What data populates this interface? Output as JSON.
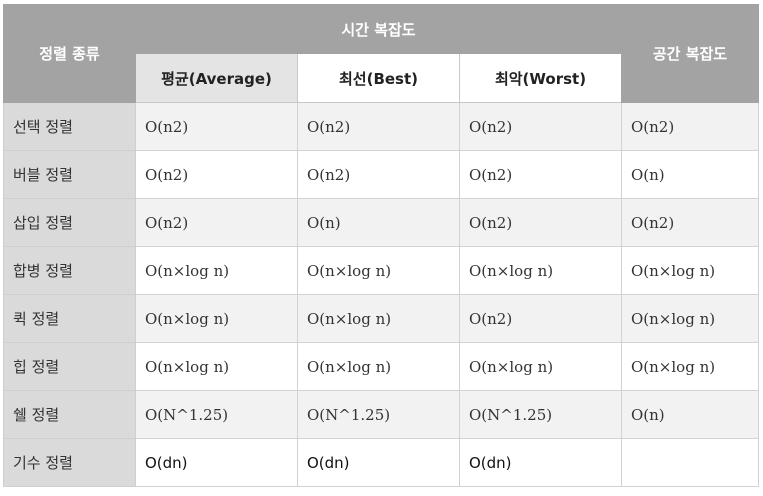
{
  "header": {
    "sort_type": "정렬 종류",
    "time_complexity": "시간 복잡도",
    "space_complexity": "공간 복잡도",
    "average": "평균(Average)",
    "best": "최선(Best)",
    "worst": "최악(Worst)"
  },
  "rows": [
    {
      "name": "선택 정렬",
      "average": "O(n2)",
      "best": "O(n2)",
      "worst": "O(n2)",
      "space": "O(n2)"
    },
    {
      "name": "버블 정렬",
      "average": "O(n2)",
      "best": "O(n2)",
      "worst": "O(n2)",
      "space": "O(n)"
    },
    {
      "name": "삽입 정렬",
      "average": "O(n2)",
      "best": "O(n)",
      "worst": "O(n2)",
      "space": "O(n2)"
    },
    {
      "name": "합병 정렬",
      "average": "O(n×log n)",
      "best": "O(n×log n)",
      "worst": "O(n×log n)",
      "space": "O(n×log n)"
    },
    {
      "name": "퀵 정렬",
      "average": "O(n×log n)",
      "best": "O(n×log n)",
      "worst": "O(n2)",
      "space": "O(n×log n)"
    },
    {
      "name": "힙 정렬",
      "average": "O(n×log n)",
      "best": "O(n×log n)",
      "worst": "O(n×log n)",
      "space": "O(n×log n)"
    },
    {
      "name": "쉘 정렬",
      "average": "O(N^1.25)",
      "best": "O(N^1.25)",
      "worst": "O(N^1.25)",
      "space": "O(n)"
    },
    {
      "name": "기수 정렬",
      "average": "O(dn)",
      "best": "O(dn)",
      "worst": "O(dn)",
      "space": ""
    }
  ]
}
